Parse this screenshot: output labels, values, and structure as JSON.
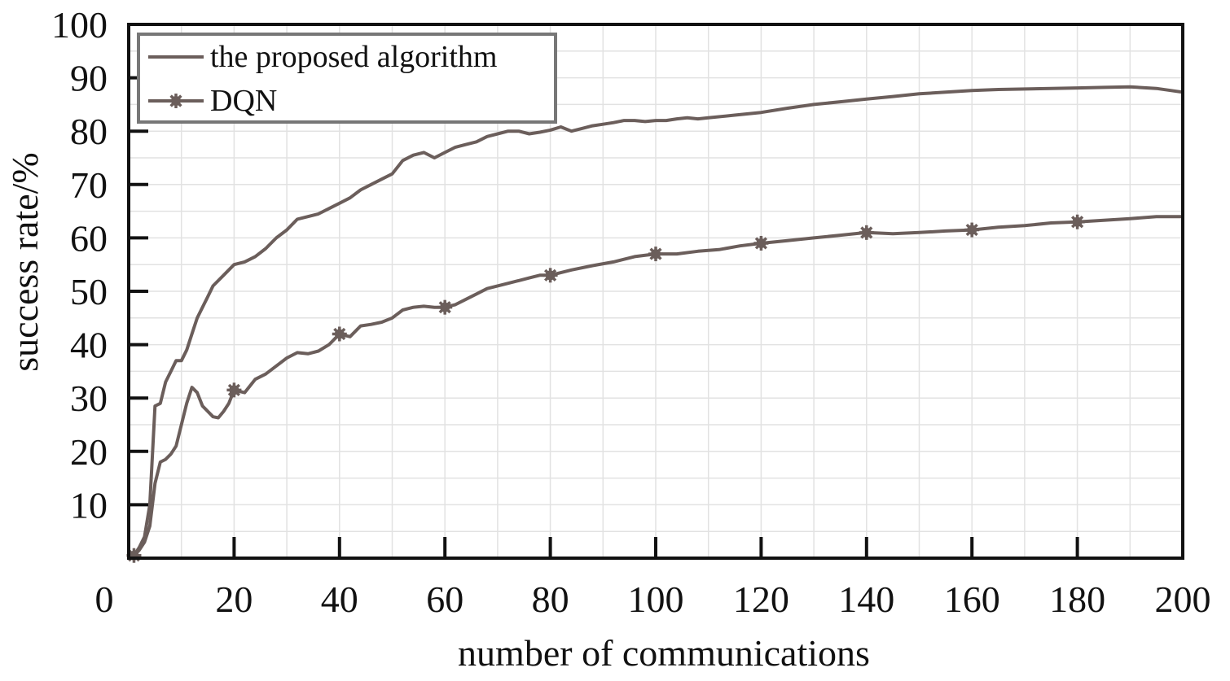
{
  "chart_data": {
    "type": "line",
    "title": "",
    "xlabel": "number of communications",
    "ylabel": "success rate/%",
    "xlim": [
      0,
      200
    ],
    "ylim": [
      0,
      100
    ],
    "x_ticks": [
      0,
      20,
      40,
      60,
      80,
      100,
      120,
      140,
      160,
      180,
      200
    ],
    "x_tick_labels": [
      "0",
      "20",
      "40",
      "60",
      "80",
      "100",
      "120",
      "140",
      "160",
      "180",
      "200"
    ],
    "y_ticks": [
      10,
      20,
      30,
      40,
      50,
      60,
      70,
      80,
      90,
      100
    ],
    "y_tick_labels": [
      "10",
      "20",
      "30",
      "40",
      "50",
      "60",
      "70",
      "80",
      "90",
      "100"
    ],
    "grid": true,
    "legend_position": "top-left",
    "series": [
      {
        "name": "the proposed algorithm",
        "color": "#6b5e5b",
        "marker": "none",
        "points": [
          [
            1,
            0.5
          ],
          [
            2,
            2
          ],
          [
            3,
            4
          ],
          [
            4,
            10
          ],
          [
            5,
            28.5
          ],
          [
            6,
            29
          ],
          [
            7,
            33
          ],
          [
            8,
            35
          ],
          [
            9,
            37
          ],
          [
            10,
            37
          ],
          [
            11,
            39
          ],
          [
            12,
            42
          ],
          [
            13,
            45
          ],
          [
            14,
            47
          ],
          [
            15,
            49
          ],
          [
            16,
            51
          ],
          [
            18,
            53
          ],
          [
            20,
            55
          ],
          [
            22,
            55.5
          ],
          [
            24,
            56.5
          ],
          [
            26,
            58
          ],
          [
            28,
            60
          ],
          [
            30,
            61.5
          ],
          [
            32,
            63.5
          ],
          [
            34,
            64
          ],
          [
            36,
            64.5
          ],
          [
            38,
            65.5
          ],
          [
            40,
            66.5
          ],
          [
            42,
            67.5
          ],
          [
            44,
            69
          ],
          [
            46,
            70
          ],
          [
            48,
            71
          ],
          [
            50,
            72
          ],
          [
            52,
            74.5
          ],
          [
            54,
            75.5
          ],
          [
            56,
            76
          ],
          [
            58,
            75
          ],
          [
            60,
            76
          ],
          [
            62,
            77
          ],
          [
            64,
            77.5
          ],
          [
            66,
            78
          ],
          [
            68,
            79
          ],
          [
            70,
            79.5
          ],
          [
            72,
            80
          ],
          [
            74,
            80
          ],
          [
            76,
            79.5
          ],
          [
            78,
            79.8
          ],
          [
            80,
            80.2
          ],
          [
            82,
            80.8
          ],
          [
            84,
            80
          ],
          [
            86,
            80.5
          ],
          [
            88,
            81
          ],
          [
            90,
            81.3
          ],
          [
            92,
            81.6
          ],
          [
            94,
            82
          ],
          [
            96,
            82
          ],
          [
            98,
            81.8
          ],
          [
            100,
            82
          ],
          [
            102,
            82
          ],
          [
            104,
            82.3
          ],
          [
            106,
            82.5
          ],
          [
            108,
            82.3
          ],
          [
            110,
            82.5
          ],
          [
            115,
            83
          ],
          [
            120,
            83.5
          ],
          [
            125,
            84.3
          ],
          [
            130,
            85
          ],
          [
            135,
            85.5
          ],
          [
            140,
            86
          ],
          [
            145,
            86.5
          ],
          [
            150,
            87
          ],
          [
            155,
            87.3
          ],
          [
            160,
            87.6
          ],
          [
            165,
            87.8
          ],
          [
            170,
            87.9
          ],
          [
            175,
            88
          ],
          [
            180,
            88.1
          ],
          [
            185,
            88.2
          ],
          [
            190,
            88.3
          ],
          [
            195,
            88
          ],
          [
            200,
            87.3
          ]
        ]
      },
      {
        "name": "DQN",
        "color": "#6b5e5b",
        "marker": "star",
        "marker_x": [
          1,
          20,
          40,
          60,
          80,
          100,
          120,
          140,
          160,
          180
        ],
        "points": [
          [
            1,
            0.5
          ],
          [
            2,
            1.5
          ],
          [
            3,
            3
          ],
          [
            4,
            6
          ],
          [
            5,
            14
          ],
          [
            6,
            18
          ],
          [
            7,
            18.5
          ],
          [
            8,
            19.5
          ],
          [
            9,
            21
          ],
          [
            10,
            25
          ],
          [
            11,
            29
          ],
          [
            12,
            32
          ],
          [
            13,
            31
          ],
          [
            14,
            28.5
          ],
          [
            15,
            27.5
          ],
          [
            16,
            26.5
          ],
          [
            17,
            26.3
          ],
          [
            18,
            27.5
          ],
          [
            19,
            29
          ],
          [
            20,
            31.5
          ],
          [
            22,
            31
          ],
          [
            24,
            33.5
          ],
          [
            26,
            34.5
          ],
          [
            28,
            36
          ],
          [
            30,
            37.5
          ],
          [
            32,
            38.5
          ],
          [
            34,
            38.3
          ],
          [
            36,
            38.8
          ],
          [
            38,
            40
          ],
          [
            40,
            42
          ],
          [
            42,
            41.5
          ],
          [
            44,
            43.5
          ],
          [
            46,
            43.8
          ],
          [
            48,
            44.2
          ],
          [
            50,
            45
          ],
          [
            52,
            46.5
          ],
          [
            54,
            47
          ],
          [
            56,
            47.2
          ],
          [
            58,
            47
          ],
          [
            60,
            47
          ],
          [
            62,
            47.5
          ],
          [
            64,
            48.5
          ],
          [
            66,
            49.5
          ],
          [
            68,
            50.5
          ],
          [
            70,
            51
          ],
          [
            72,
            51.5
          ],
          [
            74,
            52
          ],
          [
            76,
            52.5
          ],
          [
            78,
            53
          ],
          [
            80,
            53
          ],
          [
            84,
            54
          ],
          [
            88,
            54.8
          ],
          [
            92,
            55.5
          ],
          [
            96,
            56.5
          ],
          [
            100,
            57
          ],
          [
            104,
            57
          ],
          [
            108,
            57.5
          ],
          [
            112,
            57.8
          ],
          [
            116,
            58.5
          ],
          [
            120,
            59
          ],
          [
            125,
            59.5
          ],
          [
            130,
            60
          ],
          [
            135,
            60.5
          ],
          [
            140,
            61
          ],
          [
            145,
            60.8
          ],
          [
            150,
            61
          ],
          [
            155,
            61.3
          ],
          [
            160,
            61.5
          ],
          [
            165,
            62
          ],
          [
            170,
            62.3
          ],
          [
            175,
            62.8
          ],
          [
            180,
            63
          ],
          [
            185,
            63.3
          ],
          [
            190,
            63.6
          ],
          [
            195,
            64
          ],
          [
            200,
            64
          ]
        ]
      }
    ]
  }
}
